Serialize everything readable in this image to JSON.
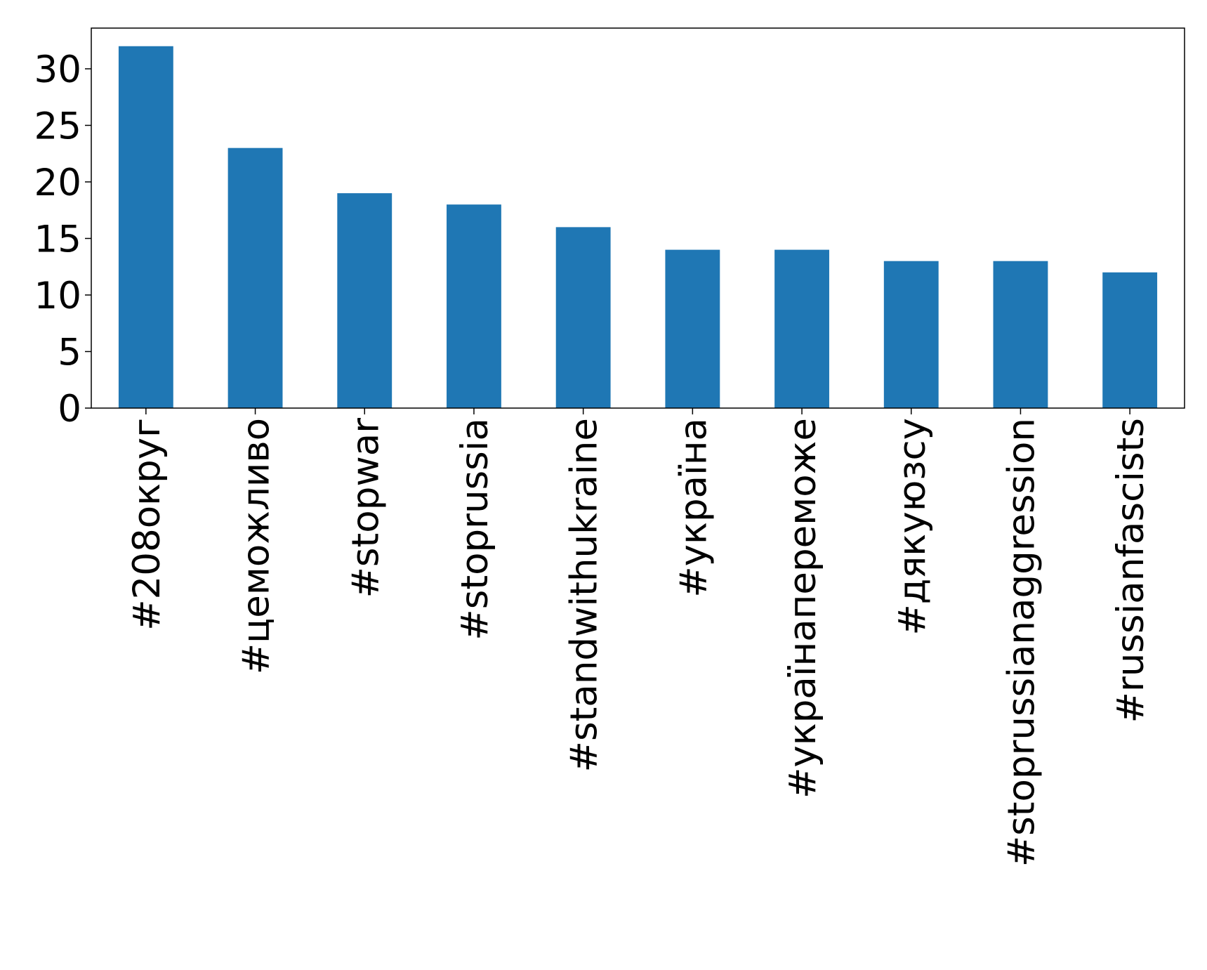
{
  "chart_data": {
    "type": "bar",
    "categories": [
      "#208округ",
      "#цеможливо",
      "#stopwar",
      "#stoprussia",
      "#standwithukraine",
      "#україна",
      "#українапереможе",
      "#дякуюзсу",
      "#stoprussianaggression",
      "#russianfascists"
    ],
    "values": [
      32,
      23,
      19,
      18,
      16,
      14,
      14,
      13,
      13,
      12
    ],
    "color": "#1f77b4",
    "ylim": [
      0,
      33.6
    ],
    "yticks": [
      0,
      5,
      10,
      15,
      20,
      25,
      30
    ],
    "grid": false
  }
}
